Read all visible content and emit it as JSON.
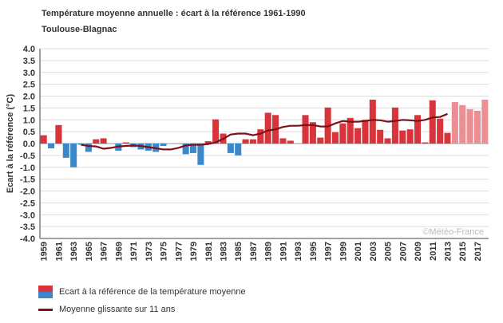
{
  "title": "Température moyenne annuelle : écart à la référence 1961-1990",
  "subtitle": "Toulouse-Blagnac",
  "watermark": "©Météo-France",
  "legend": {
    "bars_label": "Ecart à la référence de la température moyenne",
    "line_label": "Moyenne glissante sur 11 ans"
  },
  "colors": {
    "positive": "#d9343b",
    "negative": "#3a87c9",
    "positive_recent": "#ec8f95",
    "line": "#7a1219",
    "grid": "#dddddd",
    "axis": "#444444"
  },
  "chart_data": {
    "type": "bar",
    "ylabel": "Ecart à la référence (°C)",
    "ylim": [
      -4.0,
      4.0
    ],
    "ytick_step": 0.5,
    "grid": true,
    "x": [
      1959,
      1960,
      1961,
      1962,
      1963,
      1964,
      1965,
      1966,
      1967,
      1968,
      1969,
      1970,
      1971,
      1972,
      1973,
      1974,
      1975,
      1976,
      1977,
      1978,
      1979,
      1980,
      1981,
      1982,
      1983,
      1984,
      1985,
      1986,
      1987,
      1988,
      1989,
      1990,
      1991,
      1992,
      1993,
      1994,
      1995,
      1996,
      1997,
      1998,
      1999,
      2000,
      2001,
      2002,
      2003,
      2004,
      2005,
      2006,
      2007,
      2008,
      2009,
      2010,
      2011,
      2012,
      2013,
      2014,
      2015,
      2016,
      2017,
      2018
    ],
    "xtick_labels": [
      "1959",
      "1961",
      "1963",
      "1965",
      "1967",
      "1969",
      "1971",
      "1973",
      "1975",
      "1977",
      "1979",
      "1981",
      "1983",
      "1985",
      "1987",
      "1989",
      "1991",
      "1993",
      "1995",
      "1997",
      "1999",
      "2001",
      "2003",
      "2005",
      "2007",
      "2009",
      "2011",
      "2013",
      "2015",
      "2017"
    ],
    "series": [
      {
        "name": "Ecart à la référence de la température moyenne",
        "values": [
          0.35,
          -0.2,
          0.78,
          -0.6,
          -1.0,
          -0.05,
          -0.35,
          0.18,
          0.22,
          0.0,
          -0.3,
          0.05,
          -0.15,
          -0.25,
          -0.3,
          -0.35,
          -0.1,
          0.0,
          0.0,
          -0.45,
          -0.4,
          -0.9,
          0.1,
          1.02,
          0.42,
          -0.4,
          -0.5,
          0.18,
          0.18,
          0.6,
          1.3,
          1.2,
          0.22,
          0.12,
          0.0,
          1.2,
          0.9,
          0.25,
          1.52,
          0.48,
          0.85,
          1.08,
          0.65,
          1.0,
          1.85,
          0.58,
          0.22,
          1.52,
          0.55,
          0.6,
          1.2,
          0.05,
          1.82,
          1.05,
          0.45,
          1.75,
          1.62,
          1.45,
          1.38,
          1.85
        ]
      },
      {
        "name": "Moyenne glissante sur 11 ans",
        "x": [
          1964,
          1965,
          1966,
          1967,
          1968,
          1969,
          1970,
          1971,
          1972,
          1973,
          1974,
          1975,
          1976,
          1977,
          1978,
          1979,
          1980,
          1981,
          1982,
          1983,
          1984,
          1985,
          1986,
          1987,
          1988,
          1989,
          1990,
          1991,
          1992,
          1993,
          1994,
          1995,
          1996,
          1997,
          1998,
          1999,
          2000,
          2001,
          2002,
          2003,
          2004,
          2005,
          2006,
          2007,
          2008,
          2009,
          2010,
          2011,
          2012,
          2013
        ],
        "values": [
          -0.05,
          -0.1,
          -0.12,
          -0.22,
          -0.18,
          -0.12,
          -0.1,
          -0.08,
          -0.1,
          -0.15,
          -0.2,
          -0.25,
          -0.25,
          -0.18,
          -0.08,
          -0.05,
          -0.05,
          -0.02,
          0.05,
          0.2,
          0.38,
          0.42,
          0.42,
          0.35,
          0.42,
          0.55,
          0.6,
          0.7,
          0.75,
          0.75,
          0.78,
          0.78,
          0.72,
          0.72,
          0.85,
          0.95,
          0.92,
          0.92,
          0.95,
          1.0,
          0.98,
          0.92,
          0.95,
          1.0,
          0.98,
          0.95,
          1.0,
          1.1,
          1.12,
          1.25
        ]
      }
    ]
  }
}
